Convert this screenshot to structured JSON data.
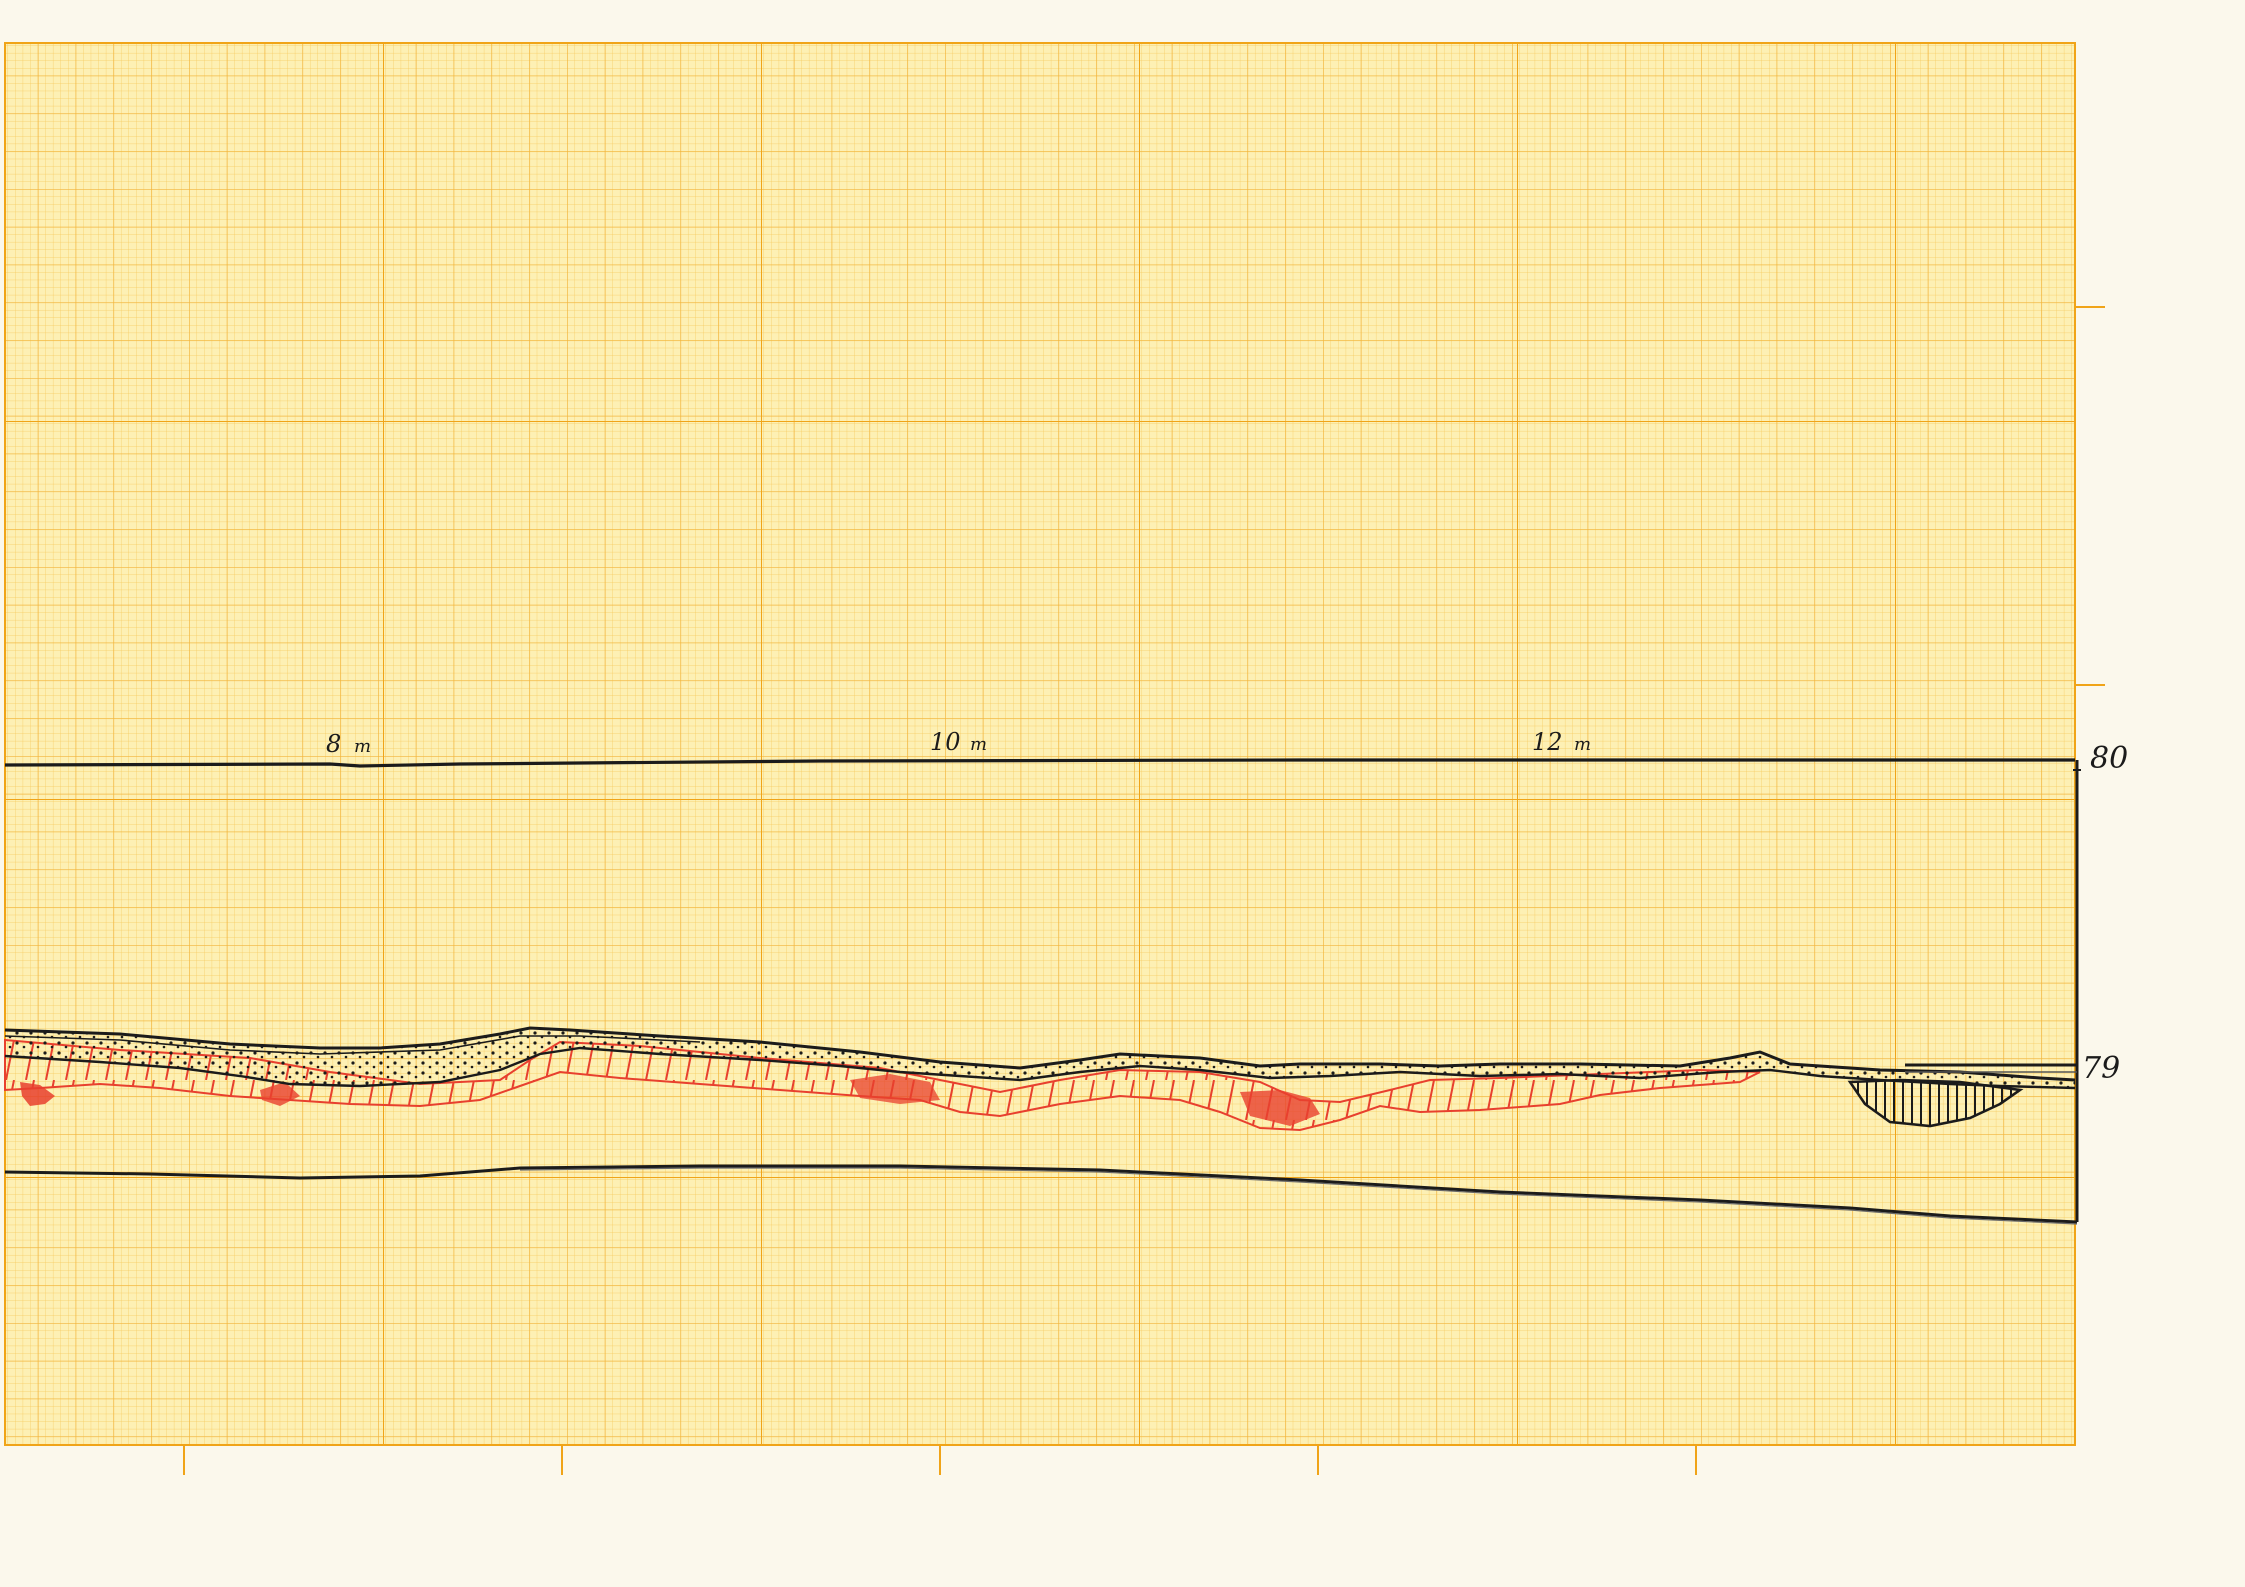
{
  "sheet": {
    "paper_color": "#fbf8ec",
    "grid_fill": "#fdf0b4",
    "grid_fine_color": "#f6c85a",
    "grid_major_color": "#f0a418",
    "ink_color": "#1b1b1b",
    "red_ink_color": "#e8402e"
  },
  "distance_labels": [
    {
      "text": "8",
      "unit": "m"
    },
    {
      "text": "10",
      "unit": "m"
    },
    {
      "text": "12",
      "unit": "m"
    }
  ],
  "elevation_labels": [
    {
      "text": "80"
    },
    {
      "text": "79"
    }
  ]
}
